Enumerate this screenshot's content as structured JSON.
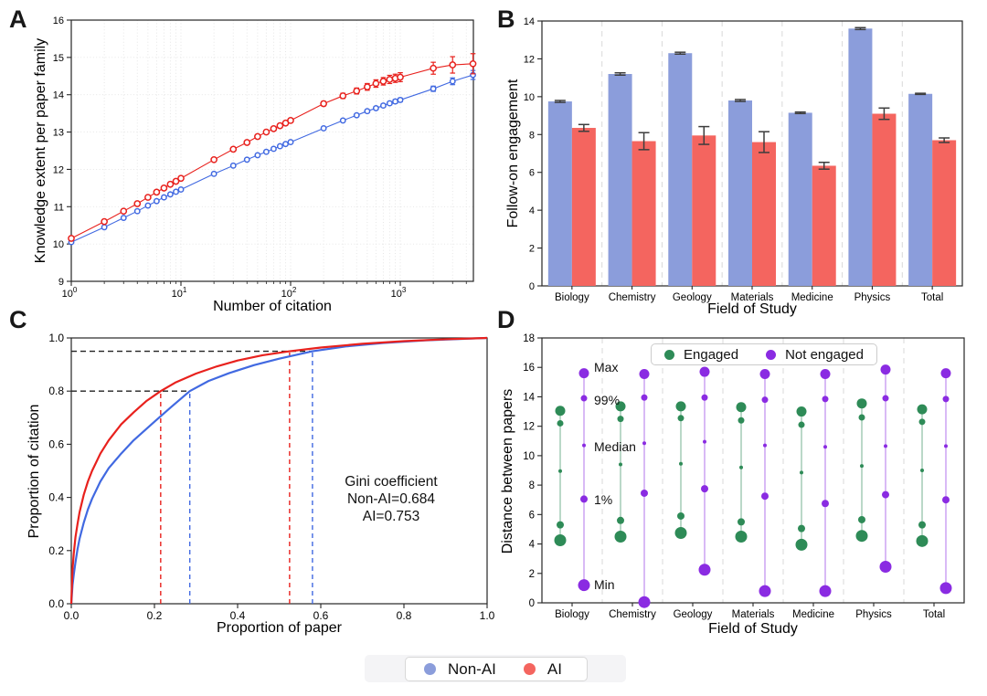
{
  "panels": {
    "a": {
      "label": "A",
      "xlabel": "Number of citation",
      "ylabel": "Knowledge extent per paper family"
    },
    "b": {
      "label": "B",
      "xlabel": "Field of Study",
      "ylabel": "Follow-on engagement"
    },
    "c": {
      "label": "C",
      "xlabel": "Proportion of paper",
      "ylabel": "Proportion of citation",
      "annotation": {
        "line1": "Gini coefficient",
        "line2": "Non-AI=0.684",
        "line3": "AI=0.753"
      }
    },
    "d": {
      "label": "D",
      "xlabel": "Field of Study",
      "ylabel": "Distance between papers",
      "legend": {
        "engaged": "Engaged",
        "not_engaged": "Not engaged"
      },
      "quantile_labels": {
        "max": "Max",
        "p99": "99%",
        "median": "Median",
        "p1": "1%",
        "min": "Min"
      }
    }
  },
  "bottom_legend": {
    "non_ai": "Non-AI",
    "ai": "AI",
    "colors": {
      "non_ai": "#8B9DDB",
      "ai": "#F4655F"
    }
  },
  "chart_data": [
    {
      "id": "A",
      "type": "line",
      "xscale": "log",
      "xlabel": "Number of citation",
      "ylabel": "Knowledge extent per paper family",
      "xlim": [
        1,
        4642
      ],
      "ylim": [
        9,
        16
      ],
      "xticks": [
        1,
        10,
        100,
        1000
      ],
      "yticks": [
        9,
        10,
        11,
        12,
        13,
        14,
        15,
        16
      ],
      "grid": "dotted",
      "x": [
        1,
        2,
        3,
        4,
        5,
        6,
        7,
        8,
        9,
        10,
        20,
        30,
        40,
        50,
        60,
        70,
        80,
        90,
        100,
        200,
        300,
        400,
        500,
        600,
        700,
        800,
        900,
        1000,
        2000,
        3000,
        4600
      ],
      "series": [
        {
          "name": "Non-AI",
          "color": "#4169E1",
          "values": [
            10.05,
            10.45,
            10.7,
            10.88,
            11.03,
            11.15,
            11.25,
            11.33,
            11.4,
            11.46,
            11.88,
            12.1,
            12.26,
            12.38,
            12.47,
            12.55,
            12.62,
            12.68,
            12.73,
            13.1,
            13.31,
            13.45,
            13.56,
            13.64,
            13.71,
            13.77,
            13.82,
            13.86,
            14.16,
            14.36,
            14.53
          ],
          "errors": [
            0.01,
            0.01,
            0.01,
            0.01,
            0.01,
            0.01,
            0.01,
            0.01,
            0.01,
            0.01,
            0.02,
            0.02,
            0.02,
            0.02,
            0.02,
            0.02,
            0.02,
            0.02,
            0.02,
            0.03,
            0.03,
            0.03,
            0.04,
            0.04,
            0.04,
            0.04,
            0.05,
            0.05,
            0.07,
            0.09,
            0.12
          ]
        },
        {
          "name": "AI",
          "color": "#E8211D",
          "values": [
            10.15,
            10.6,
            10.88,
            11.08,
            11.25,
            11.39,
            11.5,
            11.6,
            11.68,
            11.76,
            12.26,
            12.54,
            12.72,
            12.88,
            13.0,
            13.09,
            13.17,
            13.24,
            13.31,
            13.76,
            13.97,
            14.1,
            14.21,
            14.3,
            14.36,
            14.41,
            14.44,
            14.47,
            14.71,
            14.8,
            14.83
          ],
          "errors": [
            0.02,
            0.02,
            0.02,
            0.02,
            0.02,
            0.02,
            0.02,
            0.02,
            0.02,
            0.02,
            0.03,
            0.03,
            0.03,
            0.04,
            0.04,
            0.04,
            0.05,
            0.05,
            0.05,
            0.06,
            0.07,
            0.08,
            0.09,
            0.1,
            0.1,
            0.11,
            0.11,
            0.12,
            0.16,
            0.22,
            0.27
          ]
        }
      ]
    },
    {
      "id": "B",
      "type": "bar",
      "xlabel": "Field of Study",
      "ylabel": "Follow-on engagement",
      "ylim": [
        0,
        14
      ],
      "yticks": [
        0,
        2,
        4,
        6,
        8,
        10,
        12,
        14
      ],
      "categories": [
        "Biology",
        "Chemistry",
        "Geology",
        "Materials",
        "Medicine",
        "Physics",
        "Total"
      ],
      "series": [
        {
          "name": "Non-AI",
          "color": "#8B9DDB",
          "values": [
            9.75,
            11.2,
            12.3,
            9.8,
            9.15,
            13.6,
            10.15
          ],
          "errors": [
            0.05,
            0.06,
            0.05,
            0.05,
            0.04,
            0.05,
            0.03
          ]
        },
        {
          "name": "AI",
          "color": "#F4655F",
          "values": [
            8.35,
            7.65,
            7.95,
            7.6,
            6.35,
            9.1,
            7.7
          ],
          "errors": [
            0.18,
            0.45,
            0.47,
            0.55,
            0.18,
            0.3,
            0.12
          ]
        }
      ]
    },
    {
      "id": "C",
      "type": "line",
      "xlabel": "Proportion of paper",
      "ylabel": "Proportion of citation",
      "xlim": [
        0,
        1
      ],
      "ylim": [
        0,
        1
      ],
      "xticks": [
        0,
        0.2,
        0.4,
        0.6,
        0.8,
        1
      ],
      "yticks": [
        0,
        0.2,
        0.4,
        0.6,
        0.8,
        1
      ],
      "gini": {
        "non_ai": 0.684,
        "ai": 0.753
      },
      "series": [
        {
          "name": "Non-AI",
          "color": "#4169E1",
          "points": [
            [
              0,
              0
            ],
            [
              0.003,
              0.07
            ],
            [
              0.006,
              0.11
            ],
            [
              0.01,
              0.155
            ],
            [
              0.015,
              0.205
            ],
            [
              0.02,
              0.245
            ],
            [
              0.03,
              0.305
            ],
            [
              0.04,
              0.355
            ],
            [
              0.05,
              0.395
            ],
            [
              0.07,
              0.46
            ],
            [
              0.09,
              0.51
            ],
            [
              0.12,
              0.565
            ],
            [
              0.15,
              0.615
            ],
            [
              0.2,
              0.685
            ],
            [
              0.24,
              0.74
            ],
            [
              0.285,
              0.8
            ],
            [
              0.33,
              0.838
            ],
            [
              0.38,
              0.868
            ],
            [
              0.44,
              0.898
            ],
            [
              0.5,
              0.922
            ],
            [
              0.58,
              0.95
            ],
            [
              0.66,
              0.968
            ],
            [
              0.75,
              0.981
            ],
            [
              0.85,
              0.991
            ],
            [
              1,
              1
            ]
          ]
        },
        {
          "name": "AI",
          "color": "#E8211D",
          "points": [
            [
              0,
              0
            ],
            [
              0.003,
              0.13
            ],
            [
              0.006,
              0.19
            ],
            [
              0.01,
              0.25
            ],
            [
              0.015,
              0.3
            ],
            [
              0.02,
              0.345
            ],
            [
              0.03,
              0.41
            ],
            [
              0.04,
              0.46
            ],
            [
              0.05,
              0.5
            ],
            [
              0.07,
              0.565
            ],
            [
              0.09,
              0.615
            ],
            [
              0.12,
              0.675
            ],
            [
              0.15,
              0.72
            ],
            [
              0.18,
              0.762
            ],
            [
              0.215,
              0.8
            ],
            [
              0.25,
              0.832
            ],
            [
              0.3,
              0.866
            ],
            [
              0.35,
              0.893
            ],
            [
              0.4,
              0.915
            ],
            [
              0.46,
              0.935
            ],
            [
              0.525,
              0.95
            ],
            [
              0.6,
              0.964
            ],
            [
              0.7,
              0.978
            ],
            [
              0.8,
              0.988
            ],
            [
              0.9,
              0.995
            ],
            [
              1,
              1
            ]
          ]
        }
      ],
      "guides": {
        "horizontal": [
          {
            "y": 0.8,
            "x_end": 0.285,
            "color": "#222222"
          },
          {
            "y": 0.95,
            "x_end": 0.58,
            "color": "#222222"
          }
        ],
        "vertical": [
          {
            "x": 0.215,
            "y_end": 0.8,
            "color": "#E8211D"
          },
          {
            "x": 0.285,
            "y_end": 0.8,
            "color": "#4169E1"
          },
          {
            "x": 0.525,
            "y_end": 0.95,
            "color": "#E8211D"
          },
          {
            "x": 0.58,
            "y_end": 0.95,
            "color": "#4169E1"
          }
        ]
      }
    },
    {
      "id": "D",
      "type": "quantile_dot",
      "xlabel": "Field of Study",
      "ylabel": "Distance between papers",
      "ylim": [
        0,
        18
      ],
      "yticks": [
        0,
        2,
        4,
        6,
        8,
        10,
        12,
        14,
        16,
        18
      ],
      "categories": [
        "Biology",
        "Chemistry",
        "Geology",
        "Materials",
        "Medicine",
        "Physics",
        "Total"
      ],
      "quantiles": [
        "Max",
        "99%",
        "Median",
        "1%",
        "Min"
      ],
      "series": [
        {
          "name": "Engaged",
          "color": "#2E8B57",
          "values": [
            [
              13.05,
              12.2,
              8.95,
              5.3,
              4.25
            ],
            [
              13.35,
              12.5,
              9.4,
              5.6,
              4.5
            ],
            [
              13.35,
              12.55,
              9.45,
              5.9,
              4.75
            ],
            [
              13.3,
              12.4,
              9.2,
              5.5,
              4.5
            ],
            [
              13.0,
              12.1,
              8.85,
              5.05,
              3.95
            ],
            [
              13.55,
              12.6,
              9.3,
              5.65,
              4.55
            ],
            [
              13.15,
              12.3,
              9.0,
              5.3,
              4.2
            ]
          ]
        },
        {
          "name": "Not engaged",
          "color": "#8A2BE2",
          "values": [
            [
              15.6,
              13.9,
              10.7,
              7.05,
              1.2
            ],
            [
              15.55,
              13.95,
              10.85,
              7.45,
              0.05
            ],
            [
              15.7,
              13.95,
              10.95,
              7.75,
              2.25
            ],
            [
              15.55,
              13.8,
              10.7,
              7.25,
              0.8
            ],
            [
              15.55,
              13.85,
              10.6,
              6.75,
              0.8
            ],
            [
              15.85,
              13.9,
              10.65,
              7.35,
              2.45
            ],
            [
              15.6,
              13.85,
              10.65,
              7.0,
              1.0
            ]
          ]
        }
      ]
    }
  ]
}
